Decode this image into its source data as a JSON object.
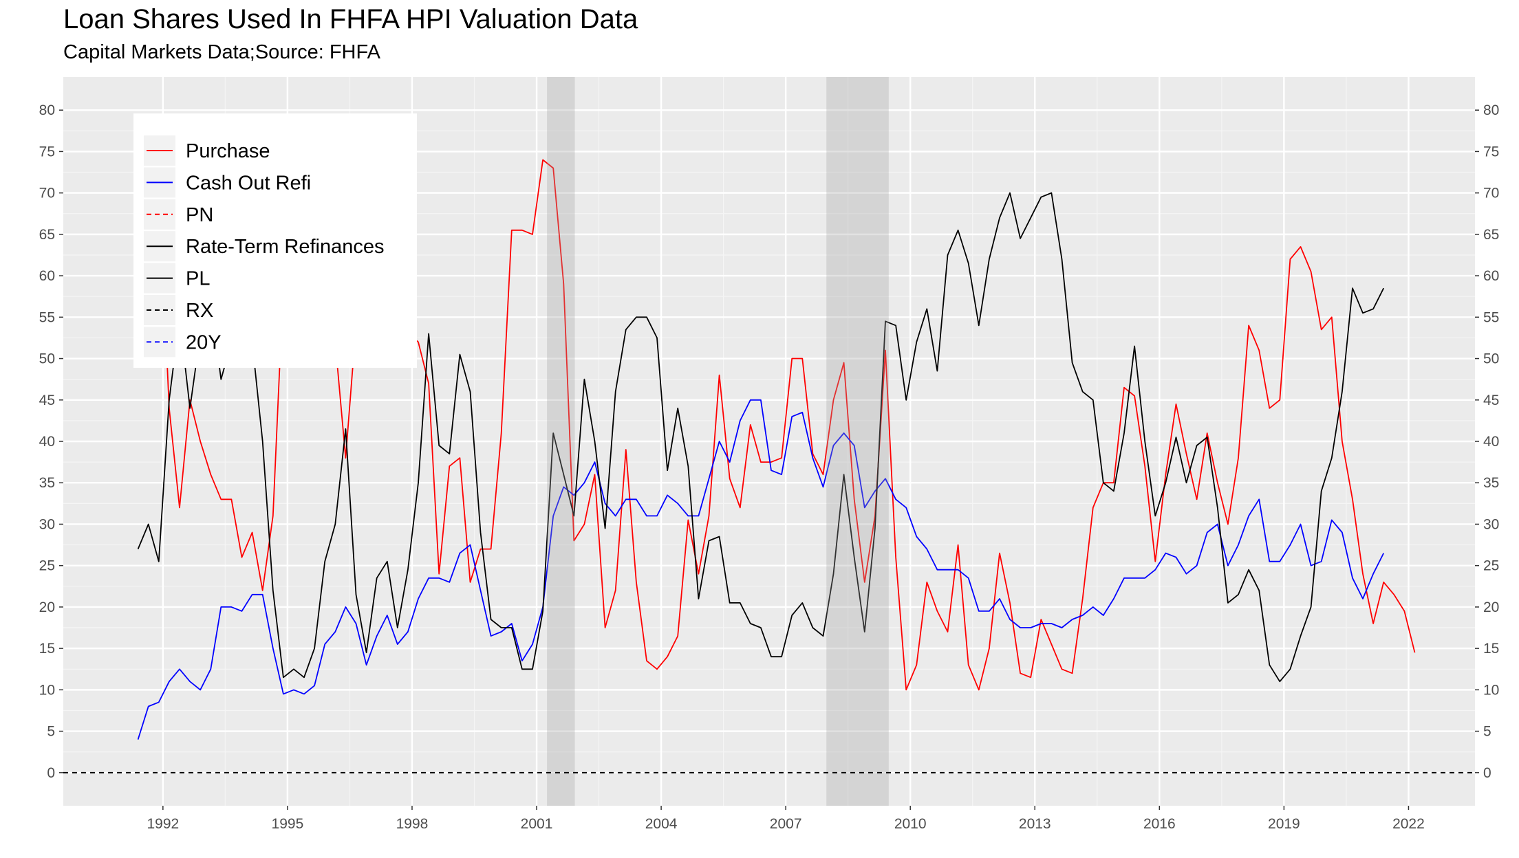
{
  "header": {
    "title": "Loan Shares Used In FHFA HPI Valuation Data",
    "subtitle": "Capital Markets Data;Source: FHFA"
  },
  "chart_data": {
    "type": "line",
    "title": "Loan Shares Used In FHFA HPI Valuation Data",
    "subtitle": "Capital Markets Data;Source: FHFA",
    "xlim": [
      1989.6,
      2023.6
    ],
    "ylim": [
      -4,
      84
    ],
    "x_ticks": [
      1992,
      1995,
      1998,
      2001,
      2004,
      2007,
      2010,
      2013,
      2016,
      2019,
      2022
    ],
    "y_ticks": [
      0,
      5,
      10,
      15,
      20,
      25,
      30,
      35,
      40,
      45,
      50,
      55,
      60,
      65,
      70,
      75,
      80
    ],
    "grid": true,
    "secondary_y_axis": true,
    "panel_background": "#ebebeb",
    "recession_shading": [
      {
        "start": 2001.25,
        "end": 2001.92
      },
      {
        "start": 2007.98,
        "end": 2009.48
      }
    ],
    "zero_line": {
      "y": 0,
      "style": "dashed",
      "color": "#000000"
    },
    "legend": {
      "position": "top-left",
      "entries": [
        {
          "label": "Purchase",
          "color": "#ff0000",
          "dash": "solid"
        },
        {
          "label": "Cash Out Refi",
          "color": "#0000ff",
          "dash": "solid"
        },
        {
          "label": "PN",
          "color": "#ff0000",
          "dash": "dashed"
        },
        {
          "label": "Rate-Term Refinances",
          "color": "#000000",
          "dash": "solid"
        },
        {
          "label": "PL",
          "color": "#000000",
          "dash": "solid"
        },
        {
          "label": "RX",
          "color": "#000000",
          "dash": "dashed"
        },
        {
          "label": "20Y",
          "color": "#0000ff",
          "dash": "dashed"
        }
      ]
    },
    "x_start": 1991.4,
    "x_step": 0.25,
    "series": [
      {
        "name": "Purchase",
        "color": "#ff0000",
        "values": [
          76,
          74,
          72,
          44,
          32,
          45,
          40,
          36,
          33,
          33,
          26,
          29,
          22,
          31,
          59,
          64,
          66,
          65,
          62,
          52,
          38,
          54,
          58,
          62,
          62,
          57,
          53,
          52,
          47,
          24,
          37,
          38,
          23,
          27,
          27,
          41,
          65.5,
          65.5,
          65,
          74,
          73,
          59,
          28,
          30,
          36,
          17.5,
          22,
          39,
          23,
          13.5,
          12.5,
          14,
          16.5,
          30.5,
          24,
          31,
          48,
          35.5,
          32,
          42,
          37.5,
          37.5,
          38,
          50,
          50,
          38.5,
          36,
          45,
          49.5,
          33,
          23,
          31,
          51,
          26,
          10,
          13,
          23,
          19.5,
          17,
          27.5,
          13,
          10,
          15,
          26.5,
          20.5,
          12,
          11.5,
          18.5,
          15.5,
          12.5,
          12,
          21,
          32,
          35,
          35,
          46.5,
          45.5,
          37,
          25.5,
          36,
          44.5,
          38.5,
          33,
          41,
          35,
          30,
          38,
          54,
          51,
          44,
          45,
          62,
          63.5,
          60.5,
          53.5,
          55,
          40,
          33,
          24,
          18,
          23,
          21.5,
          19.5,
          14.5
        ]
      },
      {
        "name": "Cash Out Refi",
        "color": "#0000ff",
        "values": [
          4,
          8,
          8.5,
          11,
          12.5,
          11,
          10,
          12.5,
          20,
          20,
          19.5,
          21.5,
          21.5,
          15,
          9.5,
          10,
          9.5,
          10.5,
          15.5,
          17,
          20,
          18,
          13,
          16.5,
          19,
          15.5,
          17,
          21,
          23.5,
          23.5,
          23,
          26.5,
          27.5,
          22,
          16.5,
          17,
          18,
          13.5,
          15.5,
          20,
          31,
          34.5,
          33.5,
          35,
          37.5,
          32.5,
          31,
          33,
          33,
          31,
          31,
          33.5,
          32.5,
          31,
          31,
          35.5,
          40,
          37.5,
          42.5,
          45,
          45,
          36.5,
          36,
          43,
          43.5,
          38,
          34.5,
          39.5,
          41,
          39.5,
          32,
          34,
          35.5,
          33,
          32,
          28.5,
          27,
          24.5,
          24.5,
          24.5,
          23.5,
          19.5,
          19.5,
          21,
          18.5,
          17.5,
          17.5,
          18,
          18,
          17.5,
          18.5,
          19,
          20,
          19,
          21,
          23.5,
          23.5,
          23.5,
          24.5,
          26.5,
          26,
          24,
          25,
          29,
          30,
          25,
          27.5,
          31,
          33,
          25.5,
          25.5,
          27.5,
          30,
          25,
          25.5,
          30.5,
          29,
          23.5,
          21,
          24,
          26.5
        ]
      },
      {
        "name": "Rate-Term Refinances",
        "color": "#000000",
        "values": [
          27,
          30,
          25.5,
          45,
          55,
          44,
          53,
          57,
          47.5,
          52,
          59,
          52,
          40,
          22,
          11.5,
          12.5,
          11.5,
          15,
          25.5,
          30,
          41.5,
          21.5,
          14.5,
          23.5,
          25.5,
          17.5,
          24.5,
          35,
          53,
          39.5,
          38.5,
          50.5,
          46,
          29,
          18.5,
          17.5,
          17.5,
          12.5,
          12.5,
          19.5,
          41,
          36,
          31,
          47.5,
          40,
          29.5,
          46,
          53.5,
          55,
          55,
          52.5,
          36.5,
          44,
          37,
          21,
          28,
          28.5,
          20.5,
          20.5,
          18,
          17.5,
          14,
          14,
          19,
          20.5,
          17.5,
          16.5,
          24,
          36,
          26,
          17,
          29.5,
          54.5,
          54,
          45,
          52,
          56,
          48.5,
          62.5,
          65.5,
          61.5,
          54,
          62,
          67,
          70,
          64.5,
          67,
          69.5,
          70,
          62,
          49.5,
          46,
          45,
          35,
          34,
          41,
          51.5,
          40,
          31,
          35,
          40.5,
          35,
          39.5,
          40.5,
          32,
          20.5,
          21.5,
          24.5,
          22,
          13,
          11,
          12.5,
          16.5,
          20,
          34,
          38,
          46,
          58.5,
          55.5,
          56,
          58.5
        ]
      },
      {
        "name": "PN",
        "color": "#ff0000",
        "dash": "dashed",
        "values": []
      },
      {
        "name": "PL",
        "color": "#000000",
        "values": []
      },
      {
        "name": "RX",
        "color": "#000000",
        "dash": "dashed",
        "values": []
      },
      {
        "name": "20Y",
        "color": "#0000ff",
        "dash": "dashed",
        "values": []
      }
    ]
  }
}
